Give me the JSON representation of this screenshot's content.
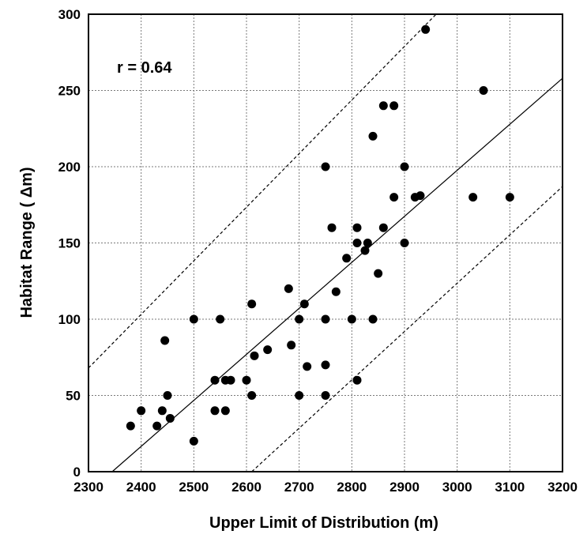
{
  "chart_data": {
    "type": "scatter",
    "title": "",
    "xlabel": "Upper Limit of Distribution (m)",
    "ylabel": "Habitat Range ( Δm)",
    "annotation": "r = 0.64",
    "xlim": [
      2300,
      3200
    ],
    "ylim": [
      0,
      300
    ],
    "x_ticks": [
      2300,
      2400,
      2500,
      2600,
      2700,
      2800,
      2900,
      3000,
      3100,
      3200
    ],
    "y_ticks": [
      0,
      50,
      100,
      150,
      200,
      250,
      300
    ],
    "grid": true,
    "points": [
      [
        2380,
        30
      ],
      [
        2400,
        40
      ],
      [
        2430,
        30
      ],
      [
        2440,
        40
      ],
      [
        2445,
        86
      ],
      [
        2450,
        50
      ],
      [
        2455,
        35
      ],
      [
        2500,
        100
      ],
      [
        2500,
        20
      ],
      [
        2540,
        60
      ],
      [
        2540,
        40
      ],
      [
        2550,
        100
      ],
      [
        2560,
        60
      ],
      [
        2560,
        40
      ],
      [
        2570,
        60
      ],
      [
        2600,
        60
      ],
      [
        2610,
        110
      ],
      [
        2610,
        50
      ],
      [
        2615,
        76
      ],
      [
        2640,
        80
      ],
      [
        2680,
        120
      ],
      [
        2685,
        83
      ],
      [
        2700,
        100
      ],
      [
        2700,
        50
      ],
      [
        2710,
        110
      ],
      [
        2715,
        69
      ],
      [
        2750,
        200
      ],
      [
        2750,
        100
      ],
      [
        2750,
        70
      ],
      [
        2750,
        50
      ],
      [
        2762,
        160
      ],
      [
        2770,
        118
      ],
      [
        2790,
        140
      ],
      [
        2800,
        100
      ],
      [
        2810,
        160
      ],
      [
        2810,
        150
      ],
      [
        2810,
        60
      ],
      [
        2825,
        145
      ],
      [
        2830,
        150
      ],
      [
        2840,
        220
      ],
      [
        2840,
        100
      ],
      [
        2850,
        130
      ],
      [
        2860,
        240
      ],
      [
        2860,
        160
      ],
      [
        2880,
        240
      ],
      [
        2880,
        180
      ],
      [
        2900,
        200
      ],
      [
        2900,
        150
      ],
      [
        2920,
        180
      ],
      [
        2930,
        181
      ],
      [
        2940,
        290
      ],
      [
        3030,
        180
      ],
      [
        3050,
        250
      ],
      [
        3100,
        180
      ]
    ],
    "regression_line": [
      [
        2345,
        0
      ],
      [
        3200,
        258
      ]
    ],
    "upper_bound_line": [
      [
        2300,
        68
      ],
      [
        2960,
        300
      ]
    ],
    "lower_bound_line": [
      [
        2610,
        0
      ],
      [
        3200,
        187
      ]
    ]
  }
}
